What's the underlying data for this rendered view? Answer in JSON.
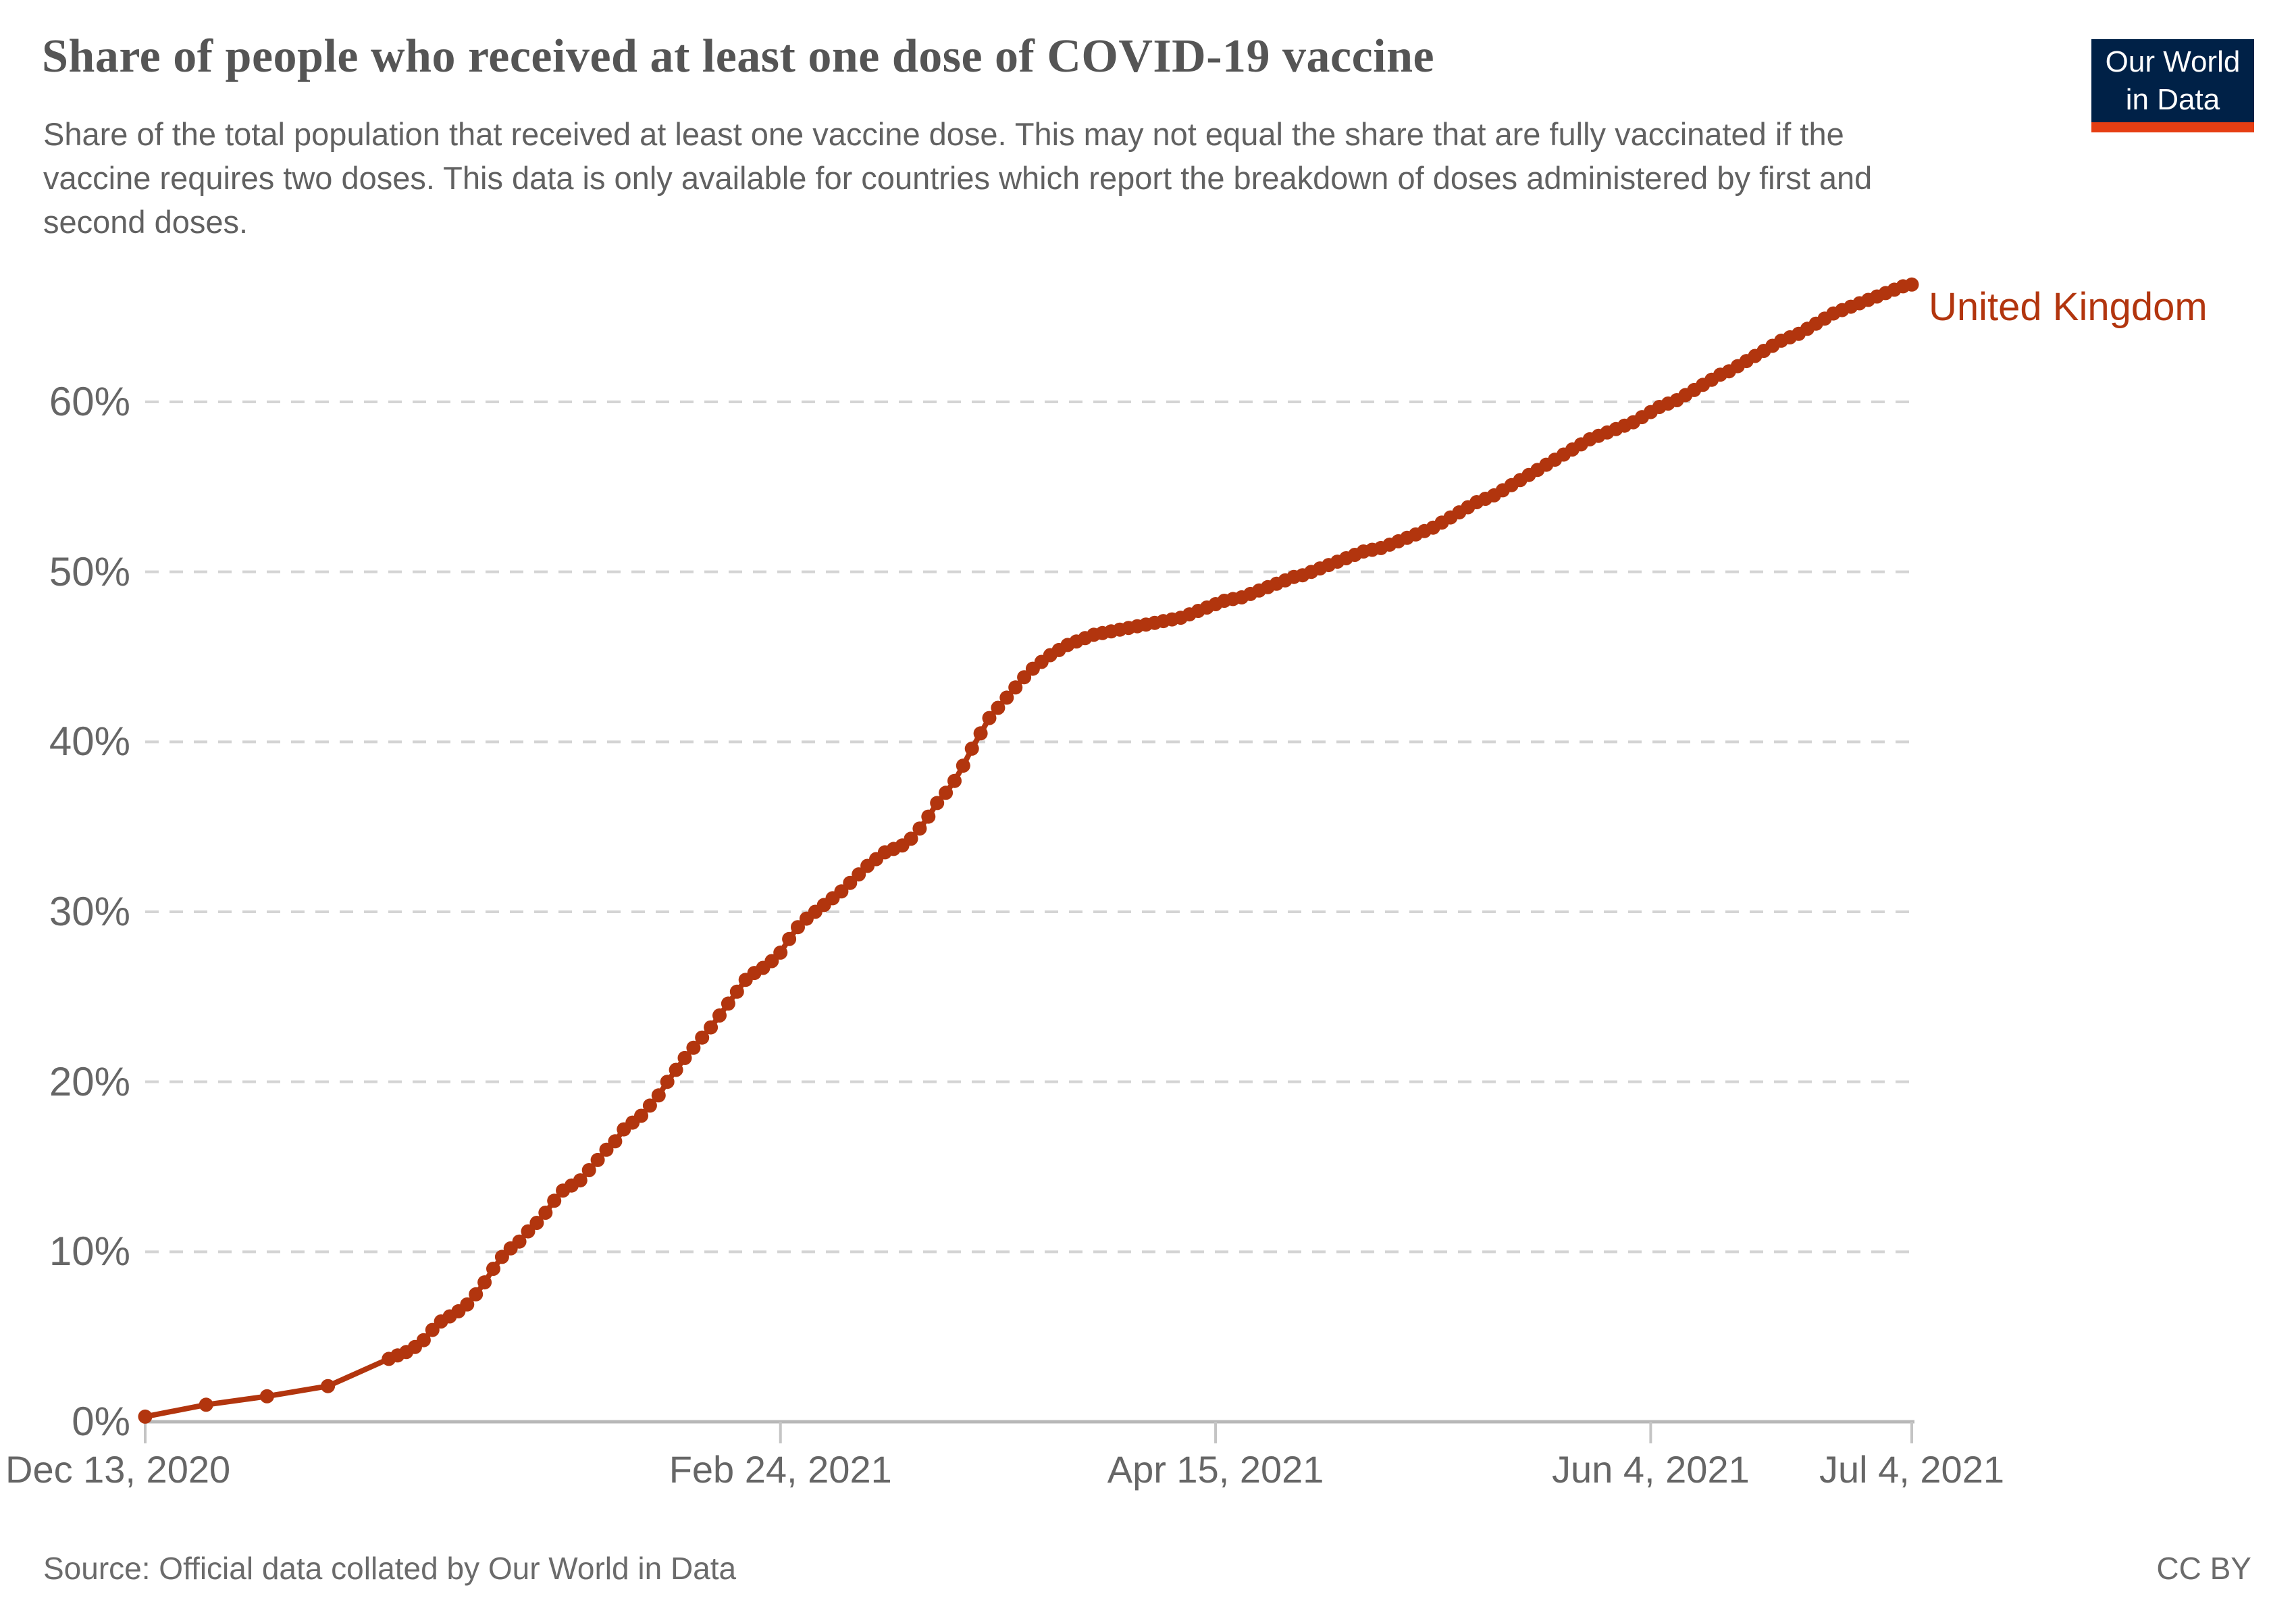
{
  "header": {
    "title": "Share of people who received at least one dose of COVID-19 vaccine",
    "subtitle": "Share of the total population that received at least one vaccine dose. This may not equal the share that are fully vaccinated if the vaccine requires two doses. This data is only available for countries which report the breakdown of doses administered by first and second doses."
  },
  "logo": {
    "line1": "Our World",
    "line2": "in Data",
    "bg_color": "#002147",
    "bar_color": "#e63e13",
    "text_color": "#ffffff"
  },
  "footer": {
    "source": "Source: Official data collated by Our World in Data",
    "license": "CC BY"
  },
  "colors": {
    "series": "#b2350e",
    "grid": "#d4d4d4",
    "axis_line": "#b8b8b8",
    "tick_mark": "#c4c4c4",
    "tick_label": "#666666"
  },
  "chart_data": {
    "type": "line",
    "title": "Share of people who received at least one dose of COVID-19 vaccine",
    "xlabel": "",
    "ylabel": "",
    "grid": "horizontal-dashed",
    "legend_position": "end-of-line-label",
    "end_label": "United Kingdom",
    "x_range": [
      "2020-12-13",
      "2021-07-04"
    ],
    "ylim": [
      0,
      67
    ],
    "y_ticks": [
      0,
      10,
      20,
      30,
      40,
      50,
      60
    ],
    "y_tick_suffix": "%",
    "x_ticks": [
      {
        "label": "Dec 13, 2020",
        "date": "2020-12-13",
        "align": "left"
      },
      {
        "label": "Feb 24, 2021",
        "date": "2021-02-24",
        "align": "center"
      },
      {
        "label": "Apr 15, 2021",
        "date": "2021-04-15",
        "align": "center"
      },
      {
        "label": "Jun 4, 2021",
        "date": "2021-06-04",
        "align": "center"
      },
      {
        "label": "Jul 4, 2021",
        "date": "2021-07-04",
        "align": "center"
      }
    ],
    "series": [
      {
        "name": "United Kingdom",
        "color": "#b2350e",
        "points": [
          [
            "2020-12-13",
            0.3
          ],
          [
            "2020-12-20",
            1.0
          ],
          [
            "2020-12-27",
            1.5
          ],
          [
            "2021-01-03",
            2.1
          ],
          [
            "2021-01-10",
            3.7
          ],
          [
            "2021-01-11",
            3.9
          ],
          [
            "2021-01-12",
            4.1
          ],
          [
            "2021-01-13",
            4.4
          ],
          [
            "2021-01-14",
            4.8
          ],
          [
            "2021-01-15",
            5.4
          ],
          [
            "2021-01-16",
            5.9
          ],
          [
            "2021-01-17",
            6.2
          ],
          [
            "2021-01-18",
            6.5
          ],
          [
            "2021-01-19",
            6.9
          ],
          [
            "2021-01-20",
            7.5
          ],
          [
            "2021-01-21",
            8.2
          ],
          [
            "2021-01-22",
            9.0
          ],
          [
            "2021-01-23",
            9.7
          ],
          [
            "2021-01-24",
            10.2
          ],
          [
            "2021-01-25",
            10.6
          ],
          [
            "2021-01-26",
            11.2
          ],
          [
            "2021-01-27",
            11.7
          ],
          [
            "2021-01-28",
            12.3
          ],
          [
            "2021-01-29",
            13.0
          ],
          [
            "2021-01-30",
            13.6
          ],
          [
            "2021-01-31",
            13.9
          ],
          [
            "2021-02-01",
            14.2
          ],
          [
            "2021-02-02",
            14.8
          ],
          [
            "2021-02-03",
            15.4
          ],
          [
            "2021-02-04",
            16.0
          ],
          [
            "2021-02-05",
            16.5
          ],
          [
            "2021-02-06",
            17.2
          ],
          [
            "2021-02-07",
            17.6
          ],
          [
            "2021-02-08",
            18.0
          ],
          [
            "2021-02-09",
            18.6
          ],
          [
            "2021-02-10",
            19.2
          ],
          [
            "2021-02-11",
            20.0
          ],
          [
            "2021-02-12",
            20.7
          ],
          [
            "2021-02-13",
            21.4
          ],
          [
            "2021-02-14",
            22.0
          ],
          [
            "2021-02-15",
            22.6
          ],
          [
            "2021-02-16",
            23.2
          ],
          [
            "2021-02-17",
            23.9
          ],
          [
            "2021-02-18",
            24.6
          ],
          [
            "2021-02-19",
            25.3
          ],
          [
            "2021-02-20",
            26.0
          ],
          [
            "2021-02-21",
            26.4
          ],
          [
            "2021-02-22",
            26.7
          ],
          [
            "2021-02-23",
            27.1
          ],
          [
            "2021-02-24",
            27.6
          ],
          [
            "2021-02-25",
            28.4
          ],
          [
            "2021-02-26",
            29.1
          ],
          [
            "2021-02-27",
            29.6
          ],
          [
            "2021-02-28",
            30.0
          ],
          [
            "2021-03-01",
            30.4
          ],
          [
            "2021-03-02",
            30.8
          ],
          [
            "2021-03-03",
            31.2
          ],
          [
            "2021-03-04",
            31.7
          ],
          [
            "2021-03-05",
            32.2
          ],
          [
            "2021-03-06",
            32.7
          ],
          [
            "2021-03-07",
            33.1
          ],
          [
            "2021-03-08",
            33.5
          ],
          [
            "2021-03-09",
            33.7
          ],
          [
            "2021-03-10",
            33.9
          ],
          [
            "2021-03-11",
            34.3
          ],
          [
            "2021-03-12",
            34.9
          ],
          [
            "2021-03-13",
            35.6
          ],
          [
            "2021-03-14",
            36.4
          ],
          [
            "2021-03-15",
            37.0
          ],
          [
            "2021-03-16",
            37.7
          ],
          [
            "2021-03-17",
            38.6
          ],
          [
            "2021-03-18",
            39.6
          ],
          [
            "2021-03-19",
            40.5
          ],
          [
            "2021-03-20",
            41.4
          ],
          [
            "2021-03-21",
            42.0
          ],
          [
            "2021-03-22",
            42.6
          ],
          [
            "2021-03-23",
            43.2
          ],
          [
            "2021-03-24",
            43.8
          ],
          [
            "2021-03-25",
            44.3
          ],
          [
            "2021-03-26",
            44.7
          ],
          [
            "2021-03-27",
            45.1
          ],
          [
            "2021-03-28",
            45.4
          ],
          [
            "2021-03-29",
            45.7
          ],
          [
            "2021-03-30",
            45.9
          ],
          [
            "2021-03-31",
            46.1
          ],
          [
            "2021-04-01",
            46.3
          ],
          [
            "2021-04-02",
            46.4
          ],
          [
            "2021-04-03",
            46.5
          ],
          [
            "2021-04-04",
            46.6
          ],
          [
            "2021-04-05",
            46.7
          ],
          [
            "2021-04-06",
            46.8
          ],
          [
            "2021-04-07",
            46.9
          ],
          [
            "2021-04-08",
            47.0
          ],
          [
            "2021-04-09",
            47.1
          ],
          [
            "2021-04-10",
            47.2
          ],
          [
            "2021-04-11",
            47.3
          ],
          [
            "2021-04-12",
            47.5
          ],
          [
            "2021-04-13",
            47.7
          ],
          [
            "2021-04-14",
            47.9
          ],
          [
            "2021-04-15",
            48.1
          ],
          [
            "2021-04-16",
            48.3
          ],
          [
            "2021-04-17",
            48.4
          ],
          [
            "2021-04-18",
            48.5
          ],
          [
            "2021-04-19",
            48.7
          ],
          [
            "2021-04-20",
            48.9
          ],
          [
            "2021-04-21",
            49.1
          ],
          [
            "2021-04-22",
            49.3
          ],
          [
            "2021-04-23",
            49.5
          ],
          [
            "2021-04-24",
            49.7
          ],
          [
            "2021-04-25",
            49.8
          ],
          [
            "2021-04-26",
            50.0
          ],
          [
            "2021-04-27",
            50.2
          ],
          [
            "2021-04-28",
            50.4
          ],
          [
            "2021-04-29",
            50.6
          ],
          [
            "2021-04-30",
            50.8
          ],
          [
            "2021-05-01",
            51.0
          ],
          [
            "2021-05-02",
            51.2
          ],
          [
            "2021-05-03",
            51.3
          ],
          [
            "2021-05-04",
            51.4
          ],
          [
            "2021-05-05",
            51.6
          ],
          [
            "2021-05-06",
            51.8
          ],
          [
            "2021-05-07",
            52.0
          ],
          [
            "2021-05-08",
            52.2
          ],
          [
            "2021-05-09",
            52.4
          ],
          [
            "2021-05-10",
            52.6
          ],
          [
            "2021-05-11",
            52.9
          ],
          [
            "2021-05-12",
            53.2
          ],
          [
            "2021-05-13",
            53.5
          ],
          [
            "2021-05-14",
            53.8
          ],
          [
            "2021-05-15",
            54.1
          ],
          [
            "2021-05-16",
            54.3
          ],
          [
            "2021-05-17",
            54.5
          ],
          [
            "2021-05-18",
            54.8
          ],
          [
            "2021-05-19",
            55.1
          ],
          [
            "2021-05-20",
            55.4
          ],
          [
            "2021-05-21",
            55.7
          ],
          [
            "2021-05-22",
            56.0
          ],
          [
            "2021-05-23",
            56.3
          ],
          [
            "2021-05-24",
            56.6
          ],
          [
            "2021-05-25",
            56.9
          ],
          [
            "2021-05-26",
            57.2
          ],
          [
            "2021-05-27",
            57.5
          ],
          [
            "2021-05-28",
            57.8
          ],
          [
            "2021-05-29",
            58.0
          ],
          [
            "2021-05-30",
            58.2
          ],
          [
            "2021-05-31",
            58.4
          ],
          [
            "2021-06-01",
            58.6
          ],
          [
            "2021-06-02",
            58.8
          ],
          [
            "2021-06-03",
            59.1
          ],
          [
            "2021-06-04",
            59.4
          ],
          [
            "2021-06-05",
            59.7
          ],
          [
            "2021-06-06",
            59.9
          ],
          [
            "2021-06-07",
            60.1
          ],
          [
            "2021-06-08",
            60.4
          ],
          [
            "2021-06-09",
            60.7
          ],
          [
            "2021-06-10",
            61.0
          ],
          [
            "2021-06-11",
            61.3
          ],
          [
            "2021-06-12",
            61.6
          ],
          [
            "2021-06-13",
            61.8
          ],
          [
            "2021-06-14",
            62.1
          ],
          [
            "2021-06-15",
            62.4
          ],
          [
            "2021-06-16",
            62.7
          ],
          [
            "2021-06-17",
            63.0
          ],
          [
            "2021-06-18",
            63.3
          ],
          [
            "2021-06-19",
            63.6
          ],
          [
            "2021-06-20",
            63.8
          ],
          [
            "2021-06-21",
            64.0
          ],
          [
            "2021-06-22",
            64.3
          ],
          [
            "2021-06-23",
            64.6
          ],
          [
            "2021-06-24",
            64.9
          ],
          [
            "2021-06-25",
            65.2
          ],
          [
            "2021-06-26",
            65.4
          ],
          [
            "2021-06-27",
            65.6
          ],
          [
            "2021-06-28",
            65.8
          ],
          [
            "2021-06-29",
            66.0
          ],
          [
            "2021-06-30",
            66.2
          ],
          [
            "2021-07-01",
            66.4
          ],
          [
            "2021-07-02",
            66.6
          ],
          [
            "2021-07-03",
            66.8
          ],
          [
            "2021-07-04",
            66.9
          ]
        ]
      }
    ]
  }
}
